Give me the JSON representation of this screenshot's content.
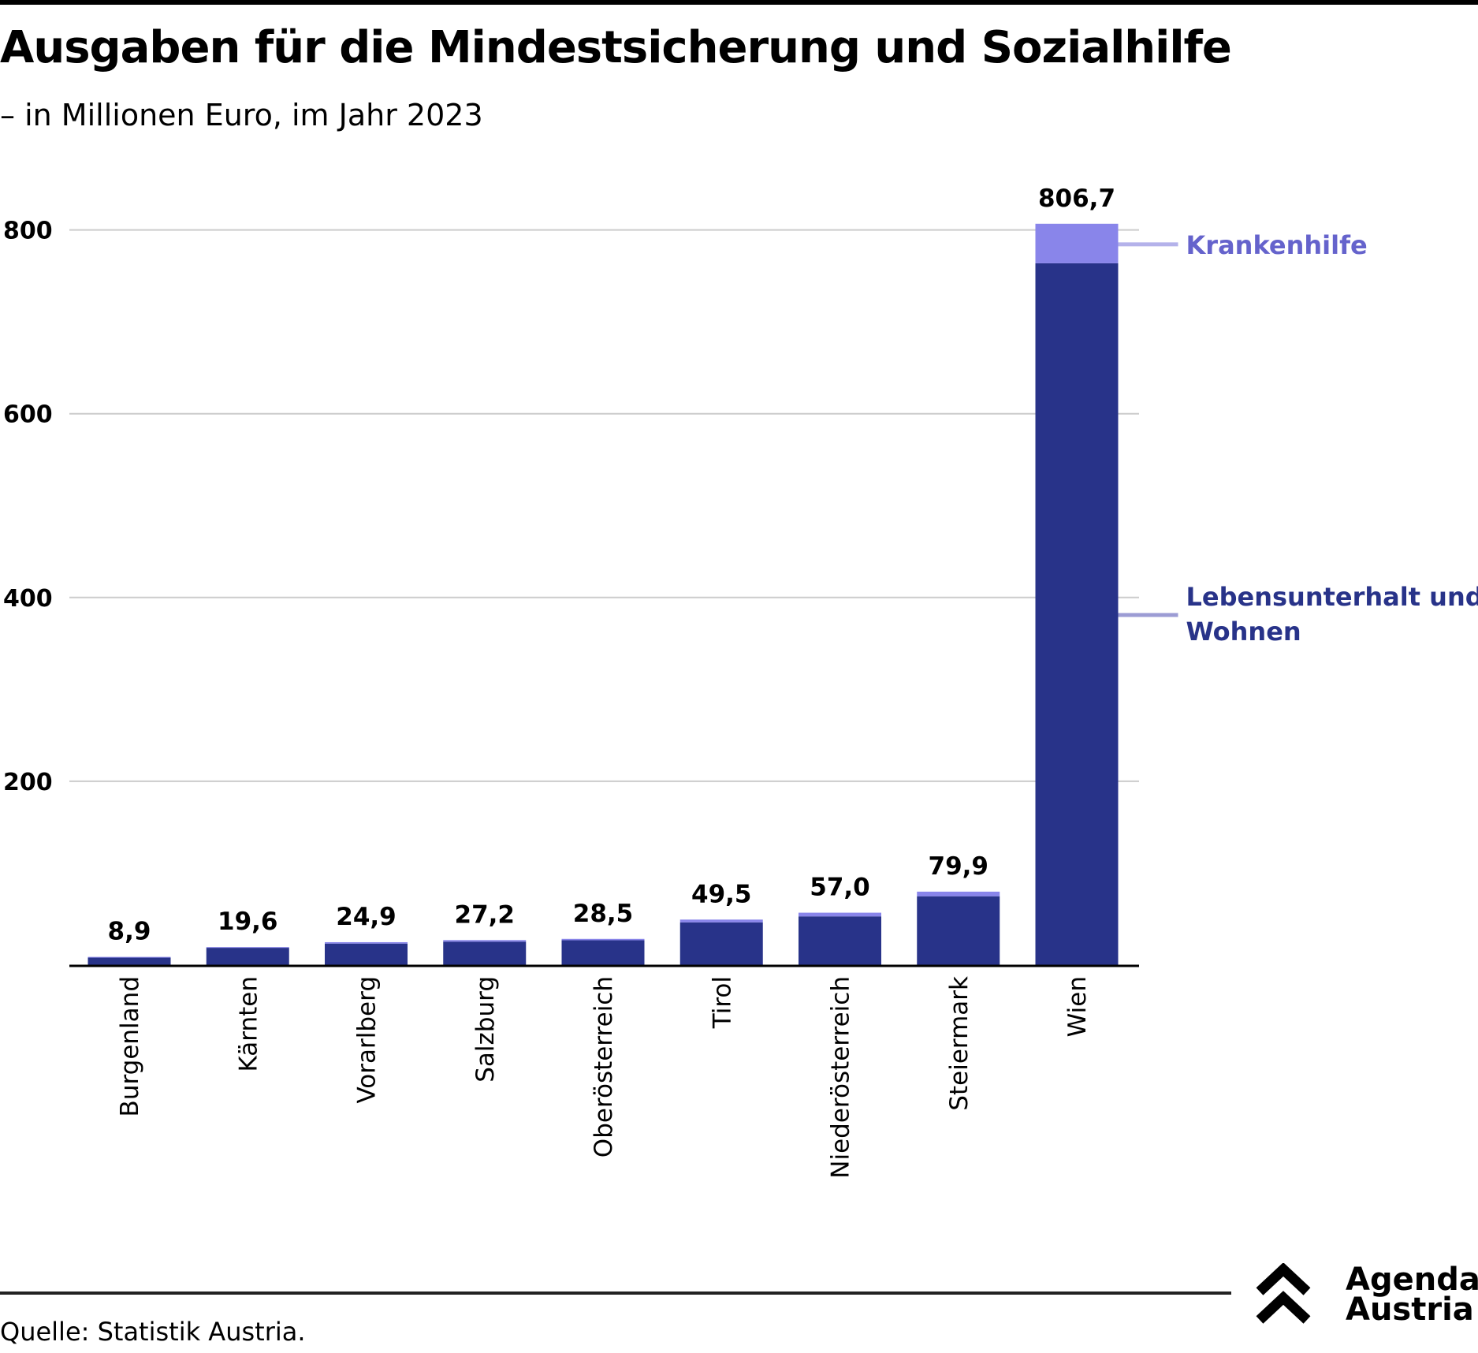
{
  "header": {
    "title": "Ausgaben für die Mindestsicherung und Sozialhilfe",
    "subtitle": "– in Millionen Euro, im Jahr 2023"
  },
  "footer": {
    "source": "Quelle: Statistik Austria.",
    "logo_line1": "Agenda",
    "logo_line2": "Austria"
  },
  "colors": {
    "lebensunterhalt": "#283389",
    "krankenhilfe": "#8985ea",
    "krankenhilfe_label": "#6563cc",
    "lebensunterhalt_label": "#283389",
    "krankenhilfe_leader": "#b4b2ea",
    "lebensunterhalt_leader": "#9c9cd4",
    "grid": "#cccccc",
    "axis": "#000000"
  },
  "chart_data": {
    "type": "bar",
    "stacked": true,
    "title": "Ausgaben für die Mindestsicherung und Sozialhilfe",
    "subtitle": "– in Millionen Euro, im Jahr 2023",
    "xlabel": "",
    "ylabel": "",
    "ylim": [
      0,
      850
    ],
    "yticks": [
      200,
      400,
      600,
      800
    ],
    "grid": true,
    "legend_placement": "right (direct labels beside Wien bar)",
    "categories": [
      "Burgenland",
      "Kärnten",
      "Vorarlberg",
      "Salzburg",
      "Oberösterreich",
      "Tirol",
      "Niederösterreich",
      "Steiermark",
      "Wien"
    ],
    "series": [
      {
        "name": "Lebensunterhalt und Wohnen",
        "values": [
          8.1,
          18.8,
          23.4,
          25.5,
          27.0,
          46.5,
          53.0,
          74.9,
          763.7
        ]
      },
      {
        "name": "Krankenhilfe",
        "values": [
          0.8,
          0.8,
          1.5,
          1.7,
          1.5,
          3.0,
          4.0,
          5.0,
          43.0
        ]
      }
    ],
    "totals": [
      8.9,
      19.6,
      24.9,
      27.2,
      28.5,
      49.5,
      57.0,
      79.9,
      806.7
    ],
    "total_labels": [
      "8,9",
      "19,6",
      "24,9",
      "27,2",
      "28,5",
      "49,5",
      "57,0",
      "79,9",
      "806,7"
    ],
    "legend": [
      {
        "label": "Krankenhilfe",
        "series": "Krankenhilfe"
      },
      {
        "label_line1": "Lebensunterhalt und",
        "label_line2": "Wohnen",
        "series": "Lebensunterhalt und Wohnen"
      }
    ]
  }
}
